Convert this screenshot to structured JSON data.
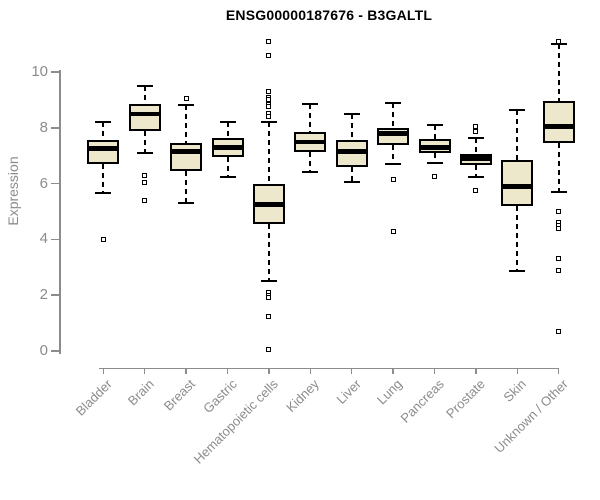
{
  "chart_data": {
    "type": "boxplot",
    "title": "ENSG00000187676 - B3GALTL",
    "ylabel": "Expression",
    "xlabel": "",
    "yticks": [
      0,
      2,
      4,
      6,
      8,
      10
    ],
    "ylim": [
      0,
      11.2
    ],
    "grid": false,
    "legend": "none",
    "categories": [
      "Bladder",
      "Brain",
      "Breast",
      "Gastric",
      "Hematopoietic cells",
      "Kidney",
      "Liver",
      "Lung",
      "Pancreas",
      "Prostate",
      "Skin",
      "Unknown / Other"
    ],
    "boxes": [
      {
        "category": "Bladder",
        "whisker_low": 5.65,
        "q1": 6.7,
        "median": 7.25,
        "q3": 7.55,
        "whisker_high": 8.2,
        "outliers": [
          4.0
        ]
      },
      {
        "category": "Brain",
        "whisker_low": 7.1,
        "q1": 7.9,
        "median": 8.5,
        "q3": 8.85,
        "whisker_high": 9.5,
        "outliers": [
          6.3,
          6.05,
          5.4
        ]
      },
      {
        "category": "Breast",
        "whisker_low": 5.3,
        "q1": 6.45,
        "median": 7.15,
        "q3": 7.45,
        "whisker_high": 8.8,
        "outliers": [
          9.05
        ]
      },
      {
        "category": "Gastric",
        "whisker_low": 6.25,
        "q1": 6.95,
        "median": 7.3,
        "q3": 7.65,
        "whisker_high": 8.2,
        "outliers": []
      },
      {
        "category": "Hematopoietic cells",
        "whisker_low": 2.5,
        "q1": 4.55,
        "median": 5.25,
        "q3": 6.0,
        "whisker_high": 8.2,
        "outliers": [
          11.1,
          10.6,
          9.3,
          9.1,
          9.0,
          8.85,
          8.75,
          8.5,
          8.4,
          2.1,
          2.0,
          1.9,
          1.25,
          0.05
        ]
      },
      {
        "category": "Kidney",
        "whisker_low": 6.4,
        "q1": 7.15,
        "median": 7.5,
        "q3": 7.85,
        "whisker_high": 8.85,
        "outliers": []
      },
      {
        "category": "Liver",
        "whisker_low": 6.05,
        "q1": 6.6,
        "median": 7.15,
        "q3": 7.55,
        "whisker_high": 8.5,
        "outliers": []
      },
      {
        "category": "Lung",
        "whisker_low": 6.7,
        "q1": 7.4,
        "median": 7.8,
        "q3": 8.0,
        "whisker_high": 8.9,
        "outliers": [
          6.15,
          4.3
        ]
      },
      {
        "category": "Pancreas",
        "whisker_low": 6.75,
        "q1": 7.1,
        "median": 7.3,
        "q3": 7.6,
        "whisker_high": 8.1,
        "outliers": [
          6.25
        ]
      },
      {
        "category": "Prostate",
        "whisker_low": 6.25,
        "q1": 6.65,
        "median": 6.9,
        "q3": 7.05,
        "whisker_high": 7.65,
        "outliers": [
          8.05,
          7.85,
          5.75
        ]
      },
      {
        "category": "Skin",
        "whisker_low": 2.85,
        "q1": 5.2,
        "median": 5.9,
        "q3": 6.85,
        "whisker_high": 8.65,
        "outliers": []
      },
      {
        "category": "Unknown / Other",
        "whisker_low": 5.7,
        "q1": 7.45,
        "median": 8.05,
        "q3": 8.95,
        "whisker_high": 11.0,
        "outliers": [
          11.1,
          5.0,
          4.6,
          4.5,
          4.4,
          3.3,
          2.9,
          0.7
        ]
      }
    ],
    "colors": {
      "box_fill": "#EDE7CB",
      "box_border": "#000000",
      "median": "#000000",
      "whisker": "#000000",
      "outlier_border": "#000000",
      "axis": "#8C8C8C",
      "tick_text": "#8C8C8C",
      "title_text": "#000000"
    }
  }
}
